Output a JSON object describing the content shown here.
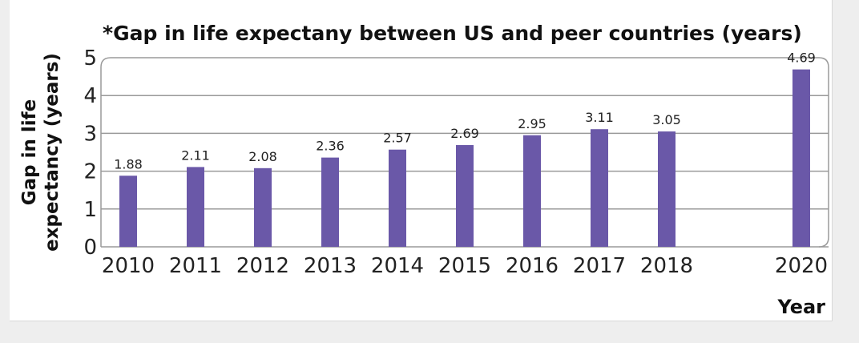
{
  "chart_data": {
    "type": "bar",
    "title": "*Gap in life expectany between US and peer countries (years)",
    "ylabel": [
      "Gap in life",
      "expectancy (years)"
    ],
    "xlabel": "Year",
    "categories": [
      "2010",
      "2011",
      "2012",
      "2013",
      "2014",
      "2015",
      "2016",
      "2017",
      "2018",
      "2020"
    ],
    "x": [
      2010,
      2011,
      2012,
      2013,
      2014,
      2015,
      2016,
      2017,
      2018,
      2020
    ],
    "values": [
      1.88,
      2.11,
      2.08,
      2.36,
      2.57,
      2.69,
      2.95,
      3.11,
      3.05,
      4.69
    ],
    "data_labels": [
      "1.88",
      "2.11",
      "2.08",
      "2.36",
      "2.57",
      "2.69",
      "2.95",
      "3.11",
      "3.05",
      "4.69"
    ],
    "ylim": [
      0,
      5
    ],
    "yticks": [
      0,
      1,
      2,
      3,
      4,
      5
    ],
    "grid": true,
    "bar_color": "#6a58a8",
    "grid_color": "#9a9a9a"
  }
}
